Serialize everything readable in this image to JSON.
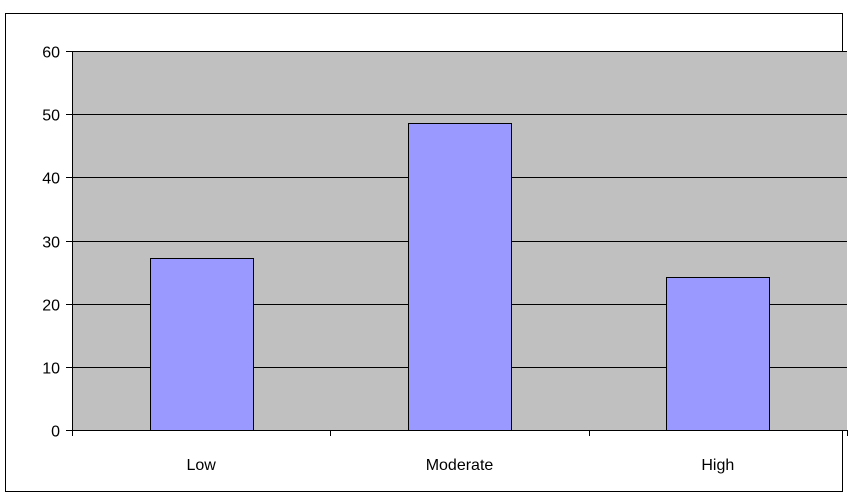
{
  "chart_data": {
    "type": "bar",
    "categories": [
      "Low",
      "Moderate",
      "High"
    ],
    "values": [
      27.3,
      48.6,
      24.2
    ],
    "ylim": [
      0,
      60
    ],
    "yticks": [
      0,
      10,
      20,
      30,
      40,
      50,
      60
    ],
    "grid": true,
    "legend": "none",
    "colors": {
      "plot_background": "#c0c0c0",
      "bar_fill": "#9999ff",
      "bar_stroke": "#000000",
      "gridline": "#000000"
    }
  }
}
